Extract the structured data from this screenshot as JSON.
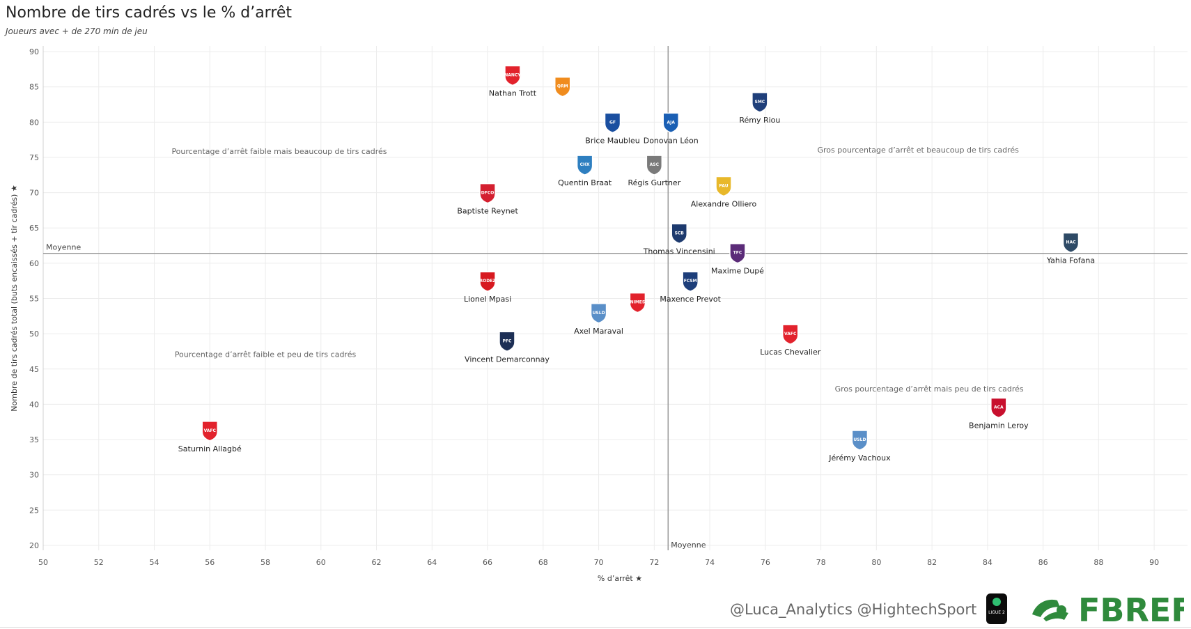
{
  "title": "Nombre de tirs cadrés vs le %  d’arrêt",
  "subtitle": "Joueurs avec + de 270 min de jeu",
  "footer": {
    "credit": "@Luca_Analytics @HightechSport",
    "league_logo_text": "LIGUE 2",
    "source_logo_text": "FBREF"
  },
  "chart_data": {
    "type": "scatter",
    "title": "Nombre de tirs cadrés vs le %  d’arrêt",
    "xlabel": "% d’arrêt",
    "ylabel": "Nombre de tirs cadrés total (buts encaissés + tir cadrés)",
    "xlim": [
      50,
      91.2
    ],
    "ylim": [
      19.3,
      90.8
    ],
    "xticks": [
      50,
      52,
      54,
      56,
      58,
      60,
      62,
      64,
      66,
      68,
      70,
      72,
      74,
      76,
      78,
      80,
      82,
      84,
      86,
      88,
      90
    ],
    "yticks": [
      20,
      25,
      30,
      35,
      40,
      45,
      50,
      55,
      60,
      65,
      70,
      75,
      80,
      85,
      90
    ],
    "grid": true,
    "reference_lines": [
      {
        "axis": "y",
        "value": 61.4,
        "label": "Moyenne"
      },
      {
        "axis": "x",
        "value": 72.5,
        "label": "Moyenne"
      }
    ],
    "quadrant_labels": [
      {
        "text": "Pourcentage d’arrêt faible mais beaucoup de tirs cadrés",
        "x": 58.5,
        "y": 75.5
      },
      {
        "text": "Gros pourcentage d’arrêt et beaucoup de tirs cadrés",
        "x": 81.5,
        "y": 75.7
      },
      {
        "text": "Pourcentage d’arrêt faible et peu de tirs cadrés",
        "x": 58.0,
        "y": 46.7
      },
      {
        "text": "Gros pourcentage d’arrêt mais peu de tirs cadrés",
        "x": 81.9,
        "y": 41.8
      }
    ],
    "points": [
      {
        "name": "Nathan Trott",
        "x": 66.9,
        "y": 86.7,
        "club": "NANCY",
        "color": "#e2222c"
      },
      {
        "name": "",
        "x": 68.7,
        "y": 85.1,
        "club": "QRM",
        "color": "#f08c1e"
      },
      {
        "name": "Brice Maubleu",
        "x": 70.5,
        "y": 80.0,
        "club": "GF",
        "color": "#1a4fa0"
      },
      {
        "name": "Donovan Léon",
        "x": 72.6,
        "y": 80.0,
        "club": "AJA",
        "color": "#1a5fb4"
      },
      {
        "name": "Rémy Riou",
        "x": 75.8,
        "y": 82.9,
        "club": "SMC",
        "color": "#1f3f7a"
      },
      {
        "name": "Quentin Braat",
        "x": 69.5,
        "y": 74.0,
        "club": "CHX",
        "color": "#2e7fc0"
      },
      {
        "name": "Régis Gurtner",
        "x": 72.0,
        "y": 74.0,
        "club": "ASC",
        "color": "#7a7a7a"
      },
      {
        "name": "Baptiste Reynet",
        "x": 66.0,
        "y": 70.0,
        "club": "DFCO",
        "color": "#d41f2f"
      },
      {
        "name": "Alexandre Olliero",
        "x": 74.5,
        "y": 71.0,
        "club": "PAU",
        "color": "#e8b82a"
      },
      {
        "name": "Thomas Vincensini",
        "x": 72.9,
        "y": 64.3,
        "club": "SCB",
        "color": "#1d3a6e"
      },
      {
        "name": "Maxime Dupé",
        "x": 75.0,
        "y": 61.5,
        "club": "TFC",
        "color": "#5b2b78"
      },
      {
        "name": "Yahia Fofana",
        "x": 87.0,
        "y": 63.0,
        "club": "HAC",
        "color": "#2e4a66"
      },
      {
        "name": "Lionel Mpasi",
        "x": 66.0,
        "y": 57.5,
        "club": "RODEZ",
        "color": "#d71920"
      },
      {
        "name": "Maxence Prevot",
        "x": 73.3,
        "y": 57.5,
        "club": "FCSM",
        "color": "#1d3e7a"
      },
      {
        "name": "Axel Maraval",
        "x": 70.0,
        "y": 53.0,
        "club": "USLD",
        "color": "#5a8fc8"
      },
      {
        "name": "",
        "x": 71.4,
        "y": 54.5,
        "club": "NIMES",
        "color": "#e2222c"
      },
      {
        "name": "Vincent Demarconnay",
        "x": 66.7,
        "y": 49.0,
        "club": "PFC",
        "color": "#1d2f55"
      },
      {
        "name": "Lucas Chevalier",
        "x": 76.9,
        "y": 50.0,
        "club": "VAFC",
        "color": "#e2222c"
      },
      {
        "name": "Saturnin Allagbé",
        "x": 56.0,
        "y": 36.3,
        "club": "VAFC",
        "color": "#e2222c"
      },
      {
        "name": "Benjamin Leroy",
        "x": 84.4,
        "y": 39.6,
        "club": "ACA",
        "color": "#c8102e"
      },
      {
        "name": "Jérémy Vachoux",
        "x": 79.4,
        "y": 35.0,
        "club": "USLD",
        "color": "#5a8fc8"
      }
    ]
  }
}
